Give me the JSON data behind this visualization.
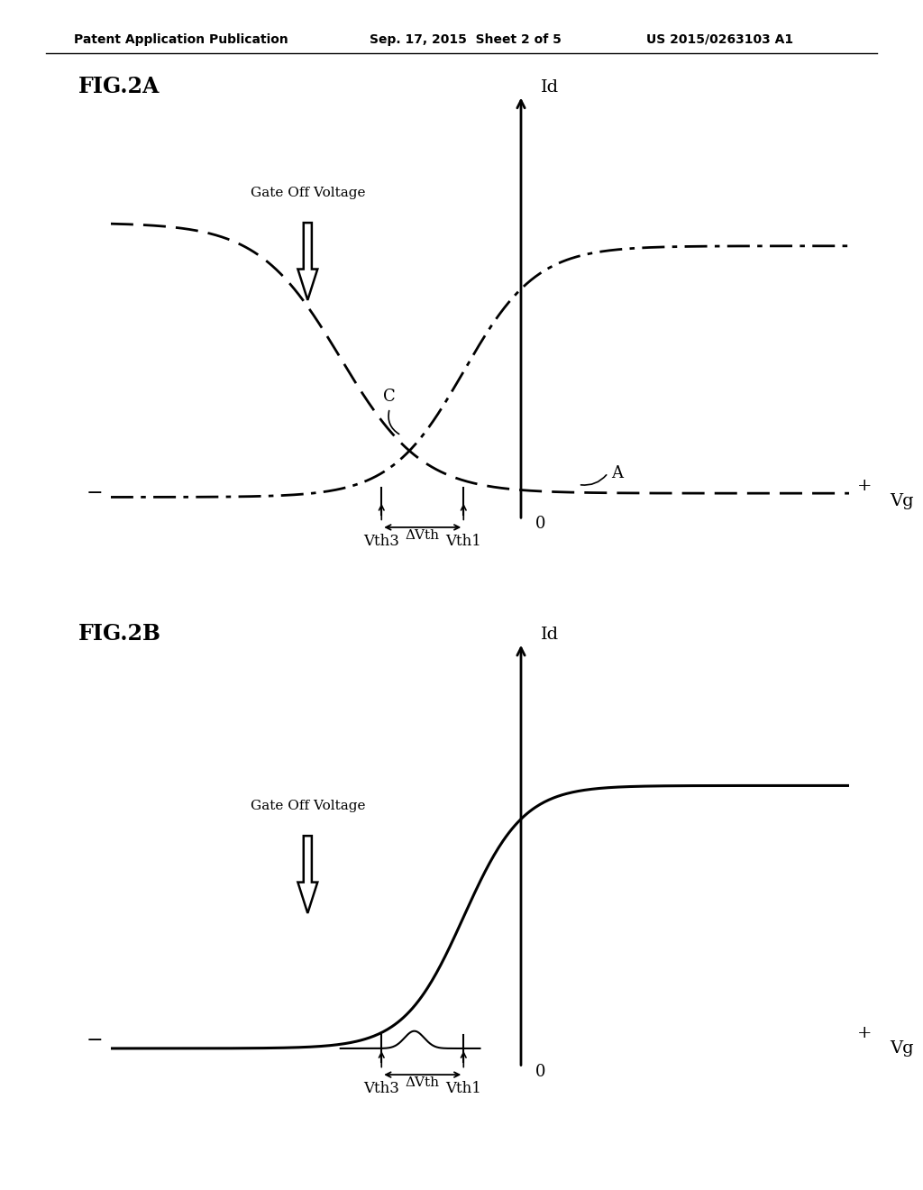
{
  "background_color": "#ffffff",
  "header_line1": "Patent Application Publication",
  "header_line2": "Sep. 17, 2015  Sheet 2 of 5",
  "header_line3": "US 2015/0263103 A1",
  "fig2a_label": "FIG.2A",
  "fig2b_label": "FIG.2B",
  "Id_label": "Id",
  "Vg_label": "Vg",
  "minus_label": "−",
  "plus_label": "+",
  "zero_label": "0",
  "gate_off_voltage_label": "Gate Off Voltage",
  "vth1_label": "Vth1",
  "vth3_label": "Vth3",
  "delta_vth_label": "ΔVth",
  "C_label": "C",
  "A_label": "A",
  "text_color": "#000000",
  "curve_color": "#000000",
  "vth1": -0.35,
  "vth3": -0.85,
  "vg_min": -2.5,
  "vg_max": 2.0,
  "vg_zero": 0.0,
  "id_max": 0.75,
  "gate_off_vg": -1.3
}
